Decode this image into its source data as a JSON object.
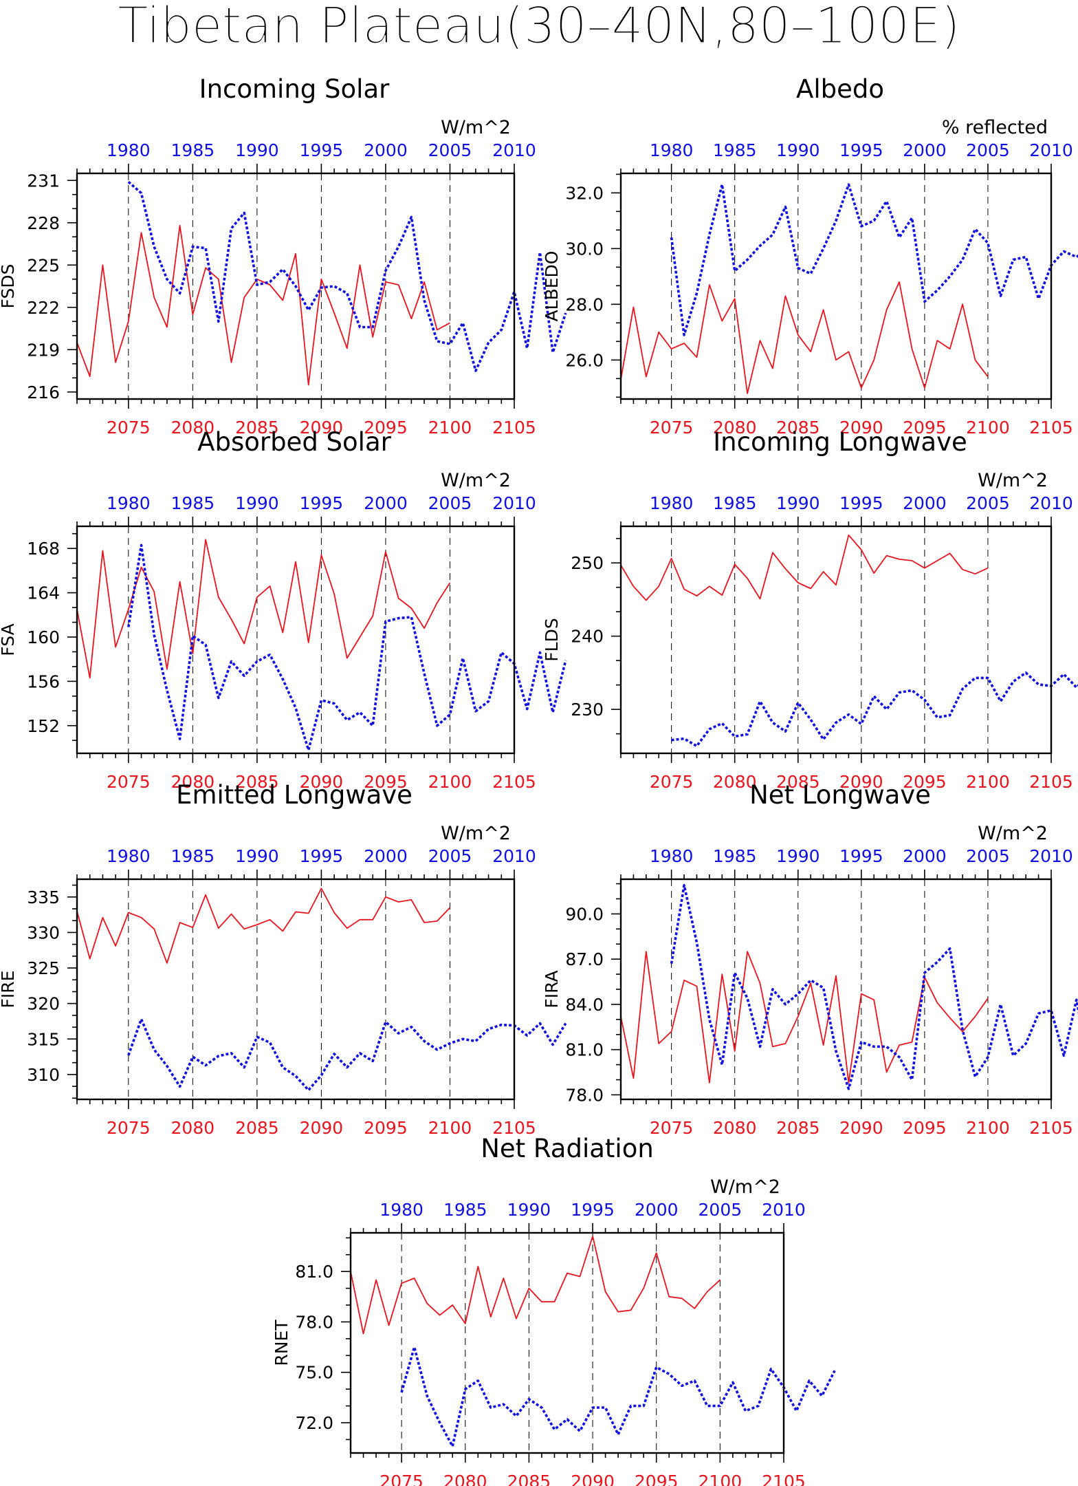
{
  "title": "Tibetan Plateau(30–40N,80–100E)",
  "colors": {
    "future": "#e8141e",
    "present": "#1010e0",
    "axis": "#000000"
  },
  "top_axis_ticks": [
    1980,
    1985,
    1990,
    1995,
    2000,
    2005,
    2010
  ],
  "bottom_axis_ticks": [
    2075,
    2080,
    2085,
    2090,
    2095,
    2100,
    2105
  ],
  "chart_data": [
    {
      "type": "line",
      "id": "fsds",
      "title": "Incoming Solar",
      "ylabel": "FSDS",
      "unit": "W/m^2",
      "yticks": [
        216,
        219,
        222,
        225,
        228,
        231
      ],
      "ytick_labels": [
        "216",
        "219",
        "222",
        "225",
        "228",
        "231"
      ],
      "ylim": [
        215.5,
        231.5
      ],
      "series": [
        {
          "role": "future",
          "x0": 2071,
          "values": [
            219.5,
            217.1,
            225.0,
            218.1,
            221.0,
            227.3,
            222.7,
            220.6,
            227.8,
            221.5,
            224.8,
            224.0,
            218.1,
            222.7,
            224.0,
            223.6,
            222.5,
            225.8,
            216.5,
            224.0,
            221.6,
            219.1,
            225.0,
            219.9,
            223.8,
            223.6,
            221.2,
            223.8,
            220.4,
            220.9
          ]
        },
        {
          "role": "present",
          "x0": 1980,
          "values": [
            230.9,
            230.1,
            226.3,
            224.0,
            223.0,
            226.3,
            226.2,
            221.0,
            227.6,
            228.7,
            223.6,
            223.8,
            224.7,
            223.5,
            221.8,
            223.4,
            223.5,
            223.0,
            220.6,
            220.6,
            224.6,
            226.3,
            228.4,
            222.5,
            219.6,
            219.4,
            220.9,
            217.5,
            219.5,
            220.4,
            223.1,
            219.1,
            225.9,
            218.8,
            221.6
          ]
        }
      ]
    },
    {
      "type": "line",
      "id": "albedo",
      "title": "Albedo",
      "ylabel": "ALBEDO",
      "unit": "% reflected",
      "yticks": [
        26,
        28,
        30,
        32
      ],
      "ytick_labels": [
        "26.0",
        "28.0",
        "30.0",
        "32.0"
      ],
      "ylim": [
        24.6,
        32.7
      ],
      "series": [
        {
          "role": "future",
          "x0": 2071,
          "values": [
            25.3,
            27.9,
            25.4,
            27.0,
            26.4,
            26.6,
            26.1,
            28.7,
            27.4,
            28.2,
            24.8,
            26.7,
            25.7,
            28.3,
            26.9,
            26.3,
            27.8,
            26.0,
            26.3,
            25.0,
            26.0,
            27.8,
            28.8,
            26.4,
            25.0,
            26.7,
            26.4,
            28.0,
            26.0,
            25.4
          ]
        },
        {
          "role": "present",
          "x0": 1980,
          "values": [
            30.4,
            26.9,
            28.4,
            30.5,
            32.3,
            29.2,
            29.6,
            30.1,
            30.5,
            31.5,
            29.3,
            29.1,
            30.0,
            31.0,
            32.3,
            30.8,
            31.0,
            31.7,
            30.4,
            31.1,
            28.1,
            28.5,
            29.0,
            29.6,
            30.7,
            30.2,
            28.3,
            29.6,
            29.7,
            28.2,
            29.4,
            29.9,
            29.7,
            30.0,
            28.6
          ]
        }
      ]
    },
    {
      "type": "line",
      "id": "fsa",
      "title": "Absorbed Solar",
      "ylabel": "FSA",
      "unit": "W/m^2",
      "yticks": [
        152,
        156,
        160,
        164,
        168
      ],
      "ytick_labels": [
        "152",
        "156",
        "160",
        "164",
        "168"
      ],
      "ylim": [
        149.5,
        170.0
      ],
      "series": [
        {
          "role": "future",
          "x0": 2071,
          "values": [
            162.5,
            156.3,
            167.8,
            159.1,
            162.5,
            166.3,
            164.1,
            157.1,
            165.0,
            158.5,
            168.8,
            163.6,
            161.6,
            159.4,
            163.6,
            164.6,
            160.4,
            166.8,
            159.5,
            167.4,
            163.9,
            158.1,
            160.0,
            161.9,
            167.7,
            163.5,
            162.6,
            160.8,
            163.1,
            164.9
          ]
        },
        {
          "role": "present",
          "x0": 1980,
          "values": [
            160.9,
            168.3,
            160.2,
            155.2,
            150.8,
            160.1,
            159.3,
            154.5,
            157.8,
            156.5,
            157.8,
            158.4,
            156.2,
            153.6,
            149.8,
            154.3,
            154.0,
            152.5,
            153.2,
            152.0,
            161.4,
            161.7,
            161.8,
            156.7,
            152.0,
            153.0,
            158.1,
            153.3,
            154.2,
            158.6,
            157.6,
            153.5,
            158.6,
            153.2,
            157.9
          ]
        }
      ]
    },
    {
      "type": "line",
      "id": "flds",
      "title": "Incoming Longwave",
      "ylabel": "FLDS",
      "unit": "W/m^2",
      "yticks": [
        230,
        240,
        250
      ],
      "ytick_labels": [
        "230",
        "240",
        "250"
      ],
      "ylim": [
        224.0,
        255.0
      ],
      "series": [
        {
          "role": "future",
          "x0": 2071,
          "values": [
            249.7,
            246.8,
            244.9,
            246.8,
            250.6,
            246.4,
            245.5,
            246.8,
            245.6,
            249.8,
            247.9,
            245.1,
            251.4,
            249.2,
            247.3,
            246.5,
            248.8,
            247.0,
            253.8,
            251.8,
            248.6,
            251.0,
            250.5,
            250.3,
            249.3,
            250.3,
            251.3,
            249.1,
            248.5,
            249.3
          ]
        },
        {
          "role": "present",
          "x0": 1980,
          "values": [
            225.8,
            226.0,
            225.0,
            227.3,
            228.1,
            226.3,
            226.6,
            231.1,
            228.2,
            227.0,
            230.9,
            228.6,
            225.9,
            228.2,
            229.3,
            228.0,
            231.8,
            230.0,
            232.3,
            232.6,
            231.3,
            228.9,
            229.2,
            232.8,
            234.3,
            234.3,
            231.1,
            233.8,
            235.0,
            233.4,
            233.2,
            234.8,
            233.0,
            234.8,
            234.7
          ]
        }
      ]
    },
    {
      "type": "line",
      "id": "fire",
      "title": "Emitted Longwave",
      "ylabel": "FIRE",
      "unit": "W/m^2",
      "yticks": [
        310,
        315,
        320,
        325,
        330,
        335
      ],
      "ytick_labels": [
        "310",
        "315",
        "320",
        "325",
        "330",
        "335"
      ],
      "ylim": [
        306.5,
        337.5
      ],
      "series": [
        {
          "role": "future",
          "x0": 2071,
          "values": [
            333.0,
            326.3,
            332.1,
            328.1,
            332.8,
            332.1,
            330.5,
            325.7,
            331.4,
            330.7,
            335.3,
            330.6,
            332.6,
            330.5,
            331.1,
            331.8,
            330.2,
            332.9,
            332.7,
            336.2,
            332.8,
            330.6,
            331.8,
            331.8,
            335.0,
            334.3,
            334.6,
            331.4,
            331.6,
            333.5
          ]
        },
        {
          "role": "present",
          "x0": 1980,
          "values": [
            312.7,
            317.8,
            313.5,
            311.2,
            308.3,
            312.5,
            311.3,
            312.6,
            313.0,
            311.0,
            315.3,
            314.5,
            311.0,
            309.8,
            307.8,
            309.9,
            312.9,
            311.0,
            313.0,
            311.9,
            317.4,
            315.8,
            316.7,
            314.7,
            313.5,
            314.4,
            315.0,
            314.7,
            316.4,
            317.0,
            316.9,
            315.5,
            317.2,
            314.2,
            317.2
          ]
        }
      ]
    },
    {
      "type": "line",
      "id": "fira",
      "title": "Net Longwave",
      "ylabel": "FIRA",
      "unit": "W/m^2",
      "yticks": [
        78,
        81,
        84,
        87,
        90
      ],
      "ytick_labels": [
        "78.0",
        "81.0",
        "84.0",
        "87.0",
        "90.0"
      ],
      "ylim": [
        77.7,
        92.3
      ],
      "series": [
        {
          "role": "future",
          "x0": 2071,
          "values": [
            83.2,
            79.1,
            87.5,
            81.4,
            82.2,
            85.6,
            85.2,
            78.8,
            86.0,
            80.9,
            87.5,
            85.4,
            81.2,
            81.4,
            83.2,
            85.4,
            81.3,
            85.9,
            78.8,
            84.7,
            84.3,
            79.5,
            81.3,
            81.5,
            85.8,
            84.1,
            83.1,
            82.2,
            83.2,
            84.4
          ]
        },
        {
          "role": "present",
          "x0": 1980,
          "values": [
            86.7,
            91.9,
            88.1,
            83.0,
            80.0,
            86.1,
            84.4,
            81.2,
            85.0,
            84.0,
            84.7,
            85.6,
            85.1,
            80.9,
            78.4,
            81.5,
            81.2,
            81.2,
            80.5,
            79.0,
            86.1,
            86.8,
            87.7,
            82.3,
            79.2,
            80.5,
            84.0,
            80.6,
            81.4,
            83.4,
            83.6,
            80.6,
            84.3,
            79.9,
            83.0
          ]
        }
      ]
    },
    {
      "type": "line",
      "id": "rnet",
      "title": "Net Radiation",
      "ylabel": "RNET",
      "unit": "W/m^2",
      "yticks": [
        72,
        75,
        78,
        81
      ],
      "ytick_labels": [
        "72.0",
        "75.0",
        "78.0",
        "81.0"
      ],
      "ylim": [
        70.2,
        83.3
      ],
      "series": [
        {
          "role": "future",
          "x0": 2071,
          "values": [
            81.0,
            77.3,
            80.5,
            77.8,
            80.3,
            80.6,
            79.1,
            78.4,
            79.0,
            77.9,
            81.3,
            78.3,
            80.6,
            78.2,
            80.0,
            79.2,
            79.2,
            80.9,
            80.7,
            83.1,
            79.8,
            78.6,
            78.7,
            80.0,
            82.1,
            79.5,
            79.4,
            78.8,
            79.8,
            80.5
          ]
        },
        {
          "role": "present",
          "x0": 1980,
          "values": [
            73.8,
            76.5,
            73.6,
            72.0,
            70.6,
            74.0,
            74.5,
            72.9,
            73.1,
            72.4,
            73.4,
            72.9,
            71.6,
            72.2,
            71.5,
            72.9,
            72.9,
            71.3,
            73.0,
            73.0,
            75.3,
            74.9,
            74.2,
            74.5,
            73.0,
            73.0,
            74.4,
            72.7,
            73.0,
            75.2,
            74.1,
            72.7,
            74.5,
            73.6,
            75.1
          ]
        }
      ]
    }
  ]
}
